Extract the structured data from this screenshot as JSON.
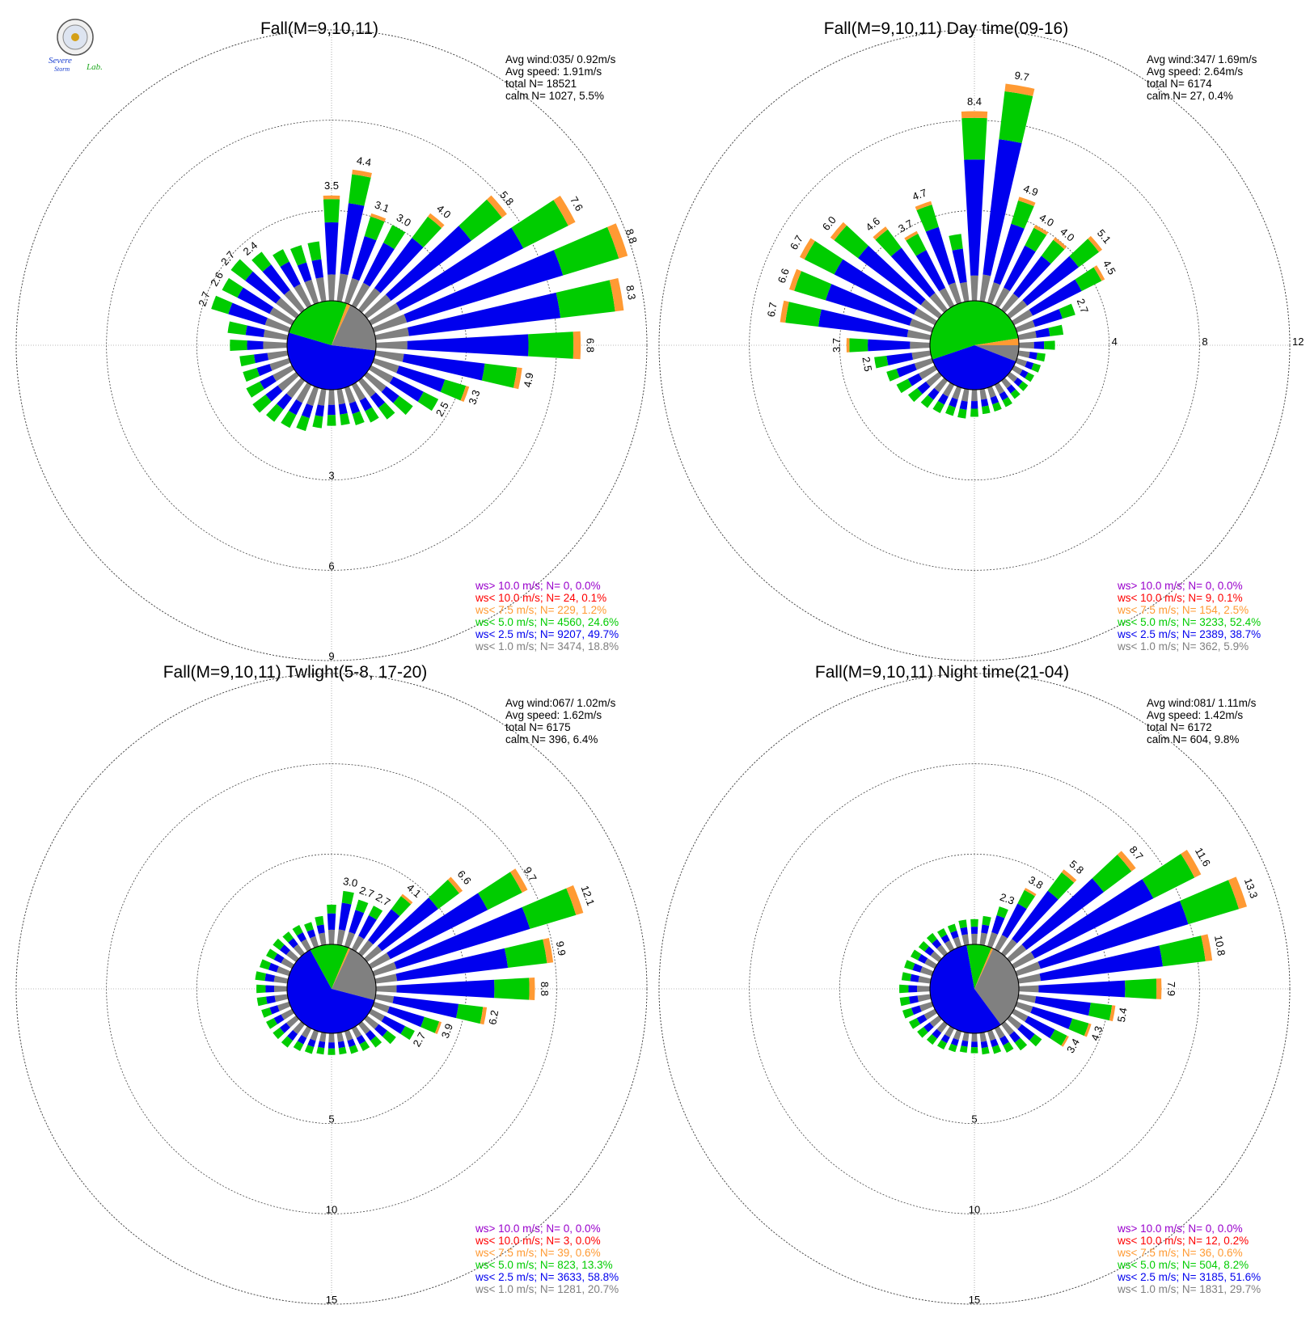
{
  "logo": {
    "text_severe": "Severe",
    "text_storm": "Storm",
    "text_lab": "Lab."
  },
  "colors": {
    "calm": "#808080",
    "lt1": "#808080",
    "lt25": "#0000ee",
    "lt5": "#00cc00",
    "lt75": "#ff9a33",
    "lt10": "#ff0000",
    "gt10": "#9900cc",
    "ring": "#444444",
    "axis": "#777777"
  },
  "chart_data": [
    {
      "type": "windrose",
      "title": "Fall(M=9,10,11)",
      "ring_values": [
        3,
        6,
        9
      ],
      "ring_labels": [
        "3",
        "6",
        "9"
      ],
      "stats": [
        "Avg wind:035/ 0.92m/s",
        "Avg speed: 1.91m/s",
        "total N=       18521",
        "calm N=  1027,   5.5%"
      ],
      "calm_fraction": 0.055,
      "calm_speed_fractions": {
        "lt1": 0.188,
        "lt25": 0.497,
        "lt5": 0.246,
        "lt75": 0.012
      },
      "bars": [
        {
          "dir": 0,
          "value": 3.5,
          "label": "3.5"
        },
        {
          "dir": 10,
          "value": 4.4,
          "label": "4.4"
        },
        {
          "dir": 20,
          "value": 3.1,
          "label": "3.1"
        },
        {
          "dir": 30,
          "value": 3.0,
          "label": "3.0"
        },
        {
          "dir": 40,
          "value": 4.0,
          "label": "4.0"
        },
        {
          "dir": 50,
          "value": 5.8,
          "label": "5.8"
        },
        {
          "dir": 60,
          "value": 7.6,
          "label": "7.6"
        },
        {
          "dir": 70,
          "value": 8.8,
          "label": "8.8"
        },
        {
          "dir": 80,
          "value": 8.3,
          "label": "8.3"
        },
        {
          "dir": 90,
          "value": 6.8,
          "label": "6.8"
        },
        {
          "dir": 100,
          "value": 4.9,
          "label": "4.9"
        },
        {
          "dir": 110,
          "value": 3.3,
          "label": "3.3"
        },
        {
          "dir": 120,
          "value": 2.5,
          "label": "2.5"
        },
        {
          "dir": 130,
          "value": 1.9
        },
        {
          "dir": 140,
          "value": 1.6
        },
        {
          "dir": 150,
          "value": 1.4
        },
        {
          "dir": 160,
          "value": 1.3
        },
        {
          "dir": 170,
          "value": 1.2
        },
        {
          "dir": 180,
          "value": 1.2
        },
        {
          "dir": 190,
          "value": 1.3
        },
        {
          "dir": 200,
          "value": 1.5
        },
        {
          "dir": 210,
          "value": 1.6
        },
        {
          "dir": 220,
          "value": 1.7
        },
        {
          "dir": 230,
          "value": 1.8
        },
        {
          "dir": 240,
          "value": 1.7
        },
        {
          "dir": 250,
          "value": 1.6
        },
        {
          "dir": 260,
          "value": 1.6
        },
        {
          "dir": 270,
          "value": 1.9
        },
        {
          "dir": 280,
          "value": 2.0
        },
        {
          "dir": 290,
          "value": 2.7,
          "label": "2.7"
        },
        {
          "dir": 300,
          "value": 2.6,
          "label": "2.6"
        },
        {
          "dir": 310,
          "value": 2.7,
          "label": "2.7"
        },
        {
          "dir": 320,
          "value": 2.4,
          "label": "2.4"
        },
        {
          "dir": 330,
          "value": 2.1
        },
        {
          "dir": 340,
          "value": 2.0
        },
        {
          "dir": 350,
          "value": 2.0
        }
      ],
      "legend": [
        {
          "key": "gt10",
          "text": "ws> 10.0 m/s; N=     0,  0.0%"
        },
        {
          "key": "lt10",
          "text": "ws< 10.0 m/s; N=    24,  0.1%"
        },
        {
          "key": "lt75",
          "text": "ws<  7.5 m/s; N=   229,  1.2%"
        },
        {
          "key": "lt5",
          "text": "ws<  5.0 m/s; N=  4560, 24.6%"
        },
        {
          "key": "lt25",
          "text": "ws<  2.5 m/s; N=  9207, 49.7%"
        },
        {
          "key": "lt1",
          "text": "ws<  1.0 m/s; N=  3474, 18.8%"
        }
      ]
    },
    {
      "type": "windrose",
      "title": "Fall(M=9,10,11) Day time(09-16)",
      "ring_values": [
        4,
        8,
        12
      ],
      "ring_labels": [
        "4",
        "8",
        "12"
      ],
      "stats": [
        "Avg wind:347/ 1.69m/s",
        "Avg speed: 2.64m/s",
        "total N=       6174",
        "calm N=    27,   0.4%"
      ],
      "calm_fraction": 0.004,
      "calm_speed_fractions": {
        "lt1": 0.059,
        "lt25": 0.387,
        "lt5": 0.524,
        "lt75": 0.025
      },
      "bars": [
        {
          "dir": 0,
          "value": 8.4,
          "label": "8.4"
        },
        {
          "dir": 10,
          "value": 9.7,
          "label": "9.7"
        },
        {
          "dir": 20,
          "value": 4.9,
          "label": "4.9"
        },
        {
          "dir": 30,
          "value": 4.0,
          "label": "4.0"
        },
        {
          "dir": 40,
          "value": 4.0,
          "label": "4.0"
        },
        {
          "dir": 50,
          "value": 5.1,
          "label": "5.1"
        },
        {
          "dir": 60,
          "value": 4.5,
          "label": "4.5"
        },
        {
          "dir": 70,
          "value": 2.7,
          "label": "2.7"
        },
        {
          "dir": 80,
          "value": 2.0
        },
        {
          "dir": 90,
          "value": 1.6
        },
        {
          "dir": 100,
          "value": 1.2
        },
        {
          "dir": 110,
          "value": 1.1
        },
        {
          "dir": 120,
          "value": 1.0
        },
        {
          "dir": 130,
          "value": 1.0
        },
        {
          "dir": 140,
          "value": 1.0
        },
        {
          "dir": 150,
          "value": 1.1
        },
        {
          "dir": 160,
          "value": 1.1
        },
        {
          "dir": 170,
          "value": 1.1
        },
        {
          "dir": 180,
          "value": 1.2
        },
        {
          "dir": 190,
          "value": 1.3
        },
        {
          "dir": 200,
          "value": 1.3
        },
        {
          "dir": 210,
          "value": 1.4
        },
        {
          "dir": 220,
          "value": 1.5
        },
        {
          "dir": 230,
          "value": 1.7
        },
        {
          "dir": 240,
          "value": 1.9
        },
        {
          "dir": 250,
          "value": 2.1
        },
        {
          "dir": 260,
          "value": 2.5,
          "label": "2.5"
        },
        {
          "dir": 270,
          "value": 3.7,
          "label": "3.7"
        },
        {
          "dir": 280,
          "value": 6.7,
          "label": "6.7"
        },
        {
          "dir": 290,
          "value": 6.6,
          "label": "6.6"
        },
        {
          "dir": 300,
          "value": 6.7,
          "label": "6.7"
        },
        {
          "dir": 310,
          "value": 6.0,
          "label": "6.0"
        },
        {
          "dir": 320,
          "value": 4.6,
          "label": "4.6"
        },
        {
          "dir": 330,
          "value": 3.7,
          "label": "3.7"
        },
        {
          "dir": 340,
          "value": 4.7,
          "label": "4.7"
        },
        {
          "dir": 350,
          "value": 3.0
        }
      ],
      "legend": [
        {
          "key": "gt10",
          "text": "ws> 10.0 m/s; N=     0,  0.0%"
        },
        {
          "key": "lt10",
          "text": "ws< 10.0 m/s; N=     9,  0.1%"
        },
        {
          "key": "lt75",
          "text": "ws<  7.5 m/s; N=   154,  2.5%"
        },
        {
          "key": "lt5",
          "text": "ws<  5.0 m/s; N=  3233, 52.4%"
        },
        {
          "key": "lt25",
          "text": "ws<  2.5 m/s; N=  2389, 38.7%"
        },
        {
          "key": "lt1",
          "text": "ws<  1.0 m/s; N=   362,  5.9%"
        }
      ]
    },
    {
      "type": "windrose",
      "title": "Fall(M=9,10,11) Twlight(5-8, 17-20)",
      "ring_values": [
        5,
        10,
        15
      ],
      "ring_labels": [
        "5",
        "10",
        "15"
      ],
      "stats": [
        "Avg wind:067/ 1.02m/s",
        "Avg speed: 1.62m/s",
        "total N=       6175",
        "calm N=   396,   6.4%"
      ],
      "calm_fraction": 0.064,
      "calm_speed_fractions": {
        "lt1": 0.207,
        "lt25": 0.588,
        "lt5": 0.133,
        "lt75": 0.006
      },
      "bars": [
        {
          "dir": 0,
          "value": 2.2
        },
        {
          "dir": 10,
          "value": 3.0,
          "label": "3.0"
        },
        {
          "dir": 20,
          "value": 2.7,
          "label": "2.7"
        },
        {
          "dir": 30,
          "value": 2.7,
          "label": "2.7"
        },
        {
          "dir": 40,
          "value": 4.1,
          "label": "4.1"
        },
        {
          "dir": 50,
          "value": 6.6,
          "label": "6.6"
        },
        {
          "dir": 60,
          "value": 9.7,
          "label": "9.7"
        },
        {
          "dir": 70,
          "value": 12.1,
          "label": "12.1"
        },
        {
          "dir": 80,
          "value": 9.9,
          "label": "9.9"
        },
        {
          "dir": 90,
          "value": 8.8,
          "label": "8.8"
        },
        {
          "dir": 100,
          "value": 6.2,
          "label": "6.2"
        },
        {
          "dir": 110,
          "value": 3.9,
          "label": "3.9"
        },
        {
          "dir": 120,
          "value": 2.7,
          "label": "2.7"
        },
        {
          "dir": 130,
          "value": 2.0
        },
        {
          "dir": 140,
          "value": 1.6
        },
        {
          "dir": 150,
          "value": 1.4
        },
        {
          "dir": 160,
          "value": 1.3
        },
        {
          "dir": 170,
          "value": 1.2
        },
        {
          "dir": 180,
          "value": 1.2
        },
        {
          "dir": 190,
          "value": 1.2
        },
        {
          "dir": 200,
          "value": 1.3
        },
        {
          "dir": 210,
          "value": 1.4
        },
        {
          "dir": 220,
          "value": 1.6
        },
        {
          "dir": 230,
          "value": 1.6
        },
        {
          "dir": 240,
          "value": 1.6
        },
        {
          "dir": 250,
          "value": 1.6
        },
        {
          "dir": 260,
          "value": 1.7
        },
        {
          "dir": 270,
          "value": 1.7
        },
        {
          "dir": 280,
          "value": 1.8
        },
        {
          "dir": 290,
          "value": 1.7
        },
        {
          "dir": 300,
          "value": 1.6
        },
        {
          "dir": 310,
          "value": 1.6
        },
        {
          "dir": 320,
          "value": 1.5
        },
        {
          "dir": 330,
          "value": 1.5
        },
        {
          "dir": 340,
          "value": 1.4
        },
        {
          "dir": 350,
          "value": 1.6
        }
      ],
      "legend": [
        {
          "key": "gt10",
          "text": "ws> 10.0 m/s; N=     0,  0.0%"
        },
        {
          "key": "lt10",
          "text": "ws< 10.0 m/s; N=     3,  0.0%"
        },
        {
          "key": "lt75",
          "text": "ws<  7.5 m/s; N=    39,  0.6%"
        },
        {
          "key": "lt5",
          "text": "ws<  5.0 m/s; N=   823, 13.3%"
        },
        {
          "key": "lt25",
          "text": "ws<  2.5 m/s; N=  3633, 58.8%"
        },
        {
          "key": "lt1",
          "text": "ws<  1.0 m/s; N=  1281, 20.7%"
        }
      ]
    },
    {
      "type": "windrose",
      "title": "Fall(M=9,10,11) Night time(21-04)",
      "ring_values": [
        5,
        10,
        15
      ],
      "ring_labels": [
        "5",
        "10",
        "15"
      ],
      "stats": [
        "Avg wind:081/ 1.11m/s",
        "Avg speed: 1.42m/s",
        "total N=       6172",
        "calm N=   604,   9.8%"
      ],
      "calm_fraction": 0.098,
      "calm_speed_fractions": {
        "lt1": 0.297,
        "lt25": 0.516,
        "lt5": 0.082,
        "lt75": 0.006
      },
      "bars": [
        {
          "dir": 0,
          "value": 1.4
        },
        {
          "dir": 10,
          "value": 1.6
        },
        {
          "dir": 20,
          "value": 2.3,
          "label": "2.3"
        },
        {
          "dir": 30,
          "value": 3.8,
          "label": "3.8"
        },
        {
          "dir": 40,
          "value": 5.8,
          "label": "5.8"
        },
        {
          "dir": 50,
          "value": 8.7,
          "label": "8.7"
        },
        {
          "dir": 60,
          "value": 11.6,
          "label": "11.6"
        },
        {
          "dir": 70,
          "value": 13.3,
          "label": "13.3"
        },
        {
          "dir": 80,
          "value": 10.8,
          "label": "10.8"
        },
        {
          "dir": 90,
          "value": 7.9,
          "label": "7.9"
        },
        {
          "dir": 100,
          "value": 5.4,
          "label": "5.4"
        },
        {
          "dir": 110,
          "value": 4.3,
          "label": "4.3"
        },
        {
          "dir": 120,
          "value": 3.4,
          "label": "3.4"
        },
        {
          "dir": 130,
          "value": 2.2
        },
        {
          "dir": 140,
          "value": 1.8
        },
        {
          "dir": 150,
          "value": 1.5
        },
        {
          "dir": 160,
          "value": 1.3
        },
        {
          "dir": 170,
          "value": 1.2
        },
        {
          "dir": 180,
          "value": 1.1
        },
        {
          "dir": 190,
          "value": 1.1
        },
        {
          "dir": 200,
          "value": 1.2
        },
        {
          "dir": 210,
          "value": 1.3
        },
        {
          "dir": 220,
          "value": 1.4
        },
        {
          "dir": 230,
          "value": 1.5
        },
        {
          "dir": 240,
          "value": 1.6
        },
        {
          "dir": 250,
          "value": 1.7
        },
        {
          "dir": 260,
          "value": 1.7
        },
        {
          "dir": 270,
          "value": 1.7
        },
        {
          "dir": 280,
          "value": 1.6
        },
        {
          "dir": 290,
          "value": 1.6
        },
        {
          "dir": 300,
          "value": 1.5
        },
        {
          "dir": 310,
          "value": 1.4
        },
        {
          "dir": 320,
          "value": 1.4
        },
        {
          "dir": 330,
          "value": 1.3
        },
        {
          "dir": 340,
          "value": 1.3
        },
        {
          "dir": 350,
          "value": 1.4
        }
      ],
      "legend": [
        {
          "key": "gt10",
          "text": "ws> 10.0 m/s; N=     0,  0.0%"
        },
        {
          "key": "lt10",
          "text": "ws< 10.0 m/s; N=    12,  0.2%"
        },
        {
          "key": "lt75",
          "text": "ws<  7.5 m/s; N=    36,  0.6%"
        },
        {
          "key": "lt5",
          "text": "ws<  5.0 m/s; N=   504,  8.2%"
        },
        {
          "key": "lt25",
          "text": "ws<  2.5 m/s; N=  3185, 51.6%"
        },
        {
          "key": "lt1",
          "text": "ws<  1.0 m/s; N=  1831, 29.7%"
        }
      ]
    }
  ]
}
